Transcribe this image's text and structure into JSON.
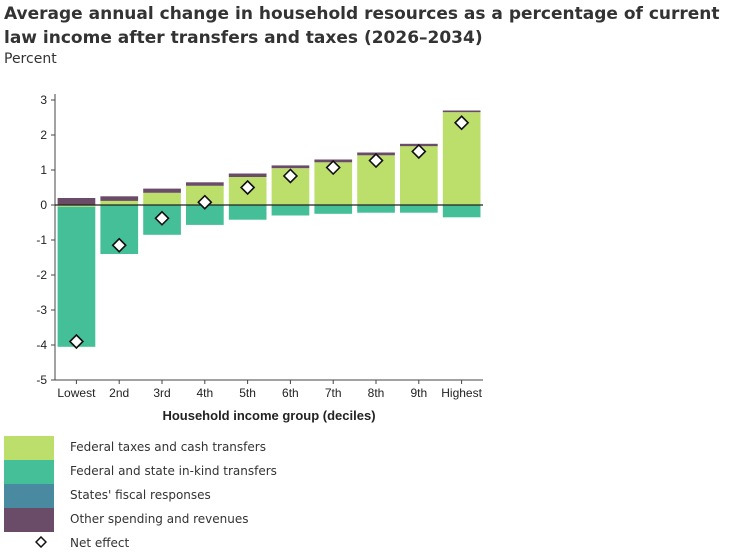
{
  "title": "Average annual change in household resources as a percentage of current law income after transfers and taxes (2026–2034)",
  "unit_label": "Percent",
  "chart_data": {
    "type": "bar",
    "stacked": true,
    "title": "Average annual change in household resources as a percentage of current law income after transfers and taxes (2026–2034)",
    "ylabel": "Percent",
    "xlabel": "Household income group (deciles)",
    "ylim": [
      -5,
      3
    ],
    "yticks": [
      3,
      2,
      1,
      0,
      -1,
      -2,
      -3,
      -4,
      -5
    ],
    "categories": [
      "Lowest",
      "2nd",
      "3rd",
      "4th",
      "5th",
      "6th",
      "7th",
      "8th",
      "9th",
      "Highest"
    ],
    "series": [
      {
        "name": "Federal taxes and cash transfers",
        "color": "#bcdf6b",
        "values": [
          -0.05,
          0.12,
          0.35,
          0.55,
          0.8,
          1.05,
          1.22,
          1.42,
          1.68,
          2.65
        ]
      },
      {
        "name": "Federal and state in-kind transfers",
        "color": "#45bf98",
        "values": [
          -4.0,
          -1.4,
          -0.85,
          -0.57,
          -0.42,
          -0.3,
          -0.25,
          -0.22,
          -0.22,
          -0.35
        ]
      },
      {
        "name": "States' fiscal responses",
        "color": "#4a8aa0",
        "values": [
          0,
          0,
          0,
          0,
          0,
          0,
          0,
          0,
          0,
          0
        ]
      },
      {
        "name": "Other spending and revenues",
        "color": "#6b4c68",
        "values": [
          0.2,
          0.13,
          0.12,
          0.1,
          0.1,
          0.08,
          0.08,
          0.08,
          0.07,
          0.05
        ]
      }
    ],
    "net_effect": {
      "name": "Net effect",
      "values": [
        -3.9,
        -1.15,
        -0.38,
        0.08,
        0.5,
        0.83,
        1.07,
        1.27,
        1.53,
        2.35
      ]
    },
    "grid": false,
    "legend_position": "bottom-left"
  }
}
